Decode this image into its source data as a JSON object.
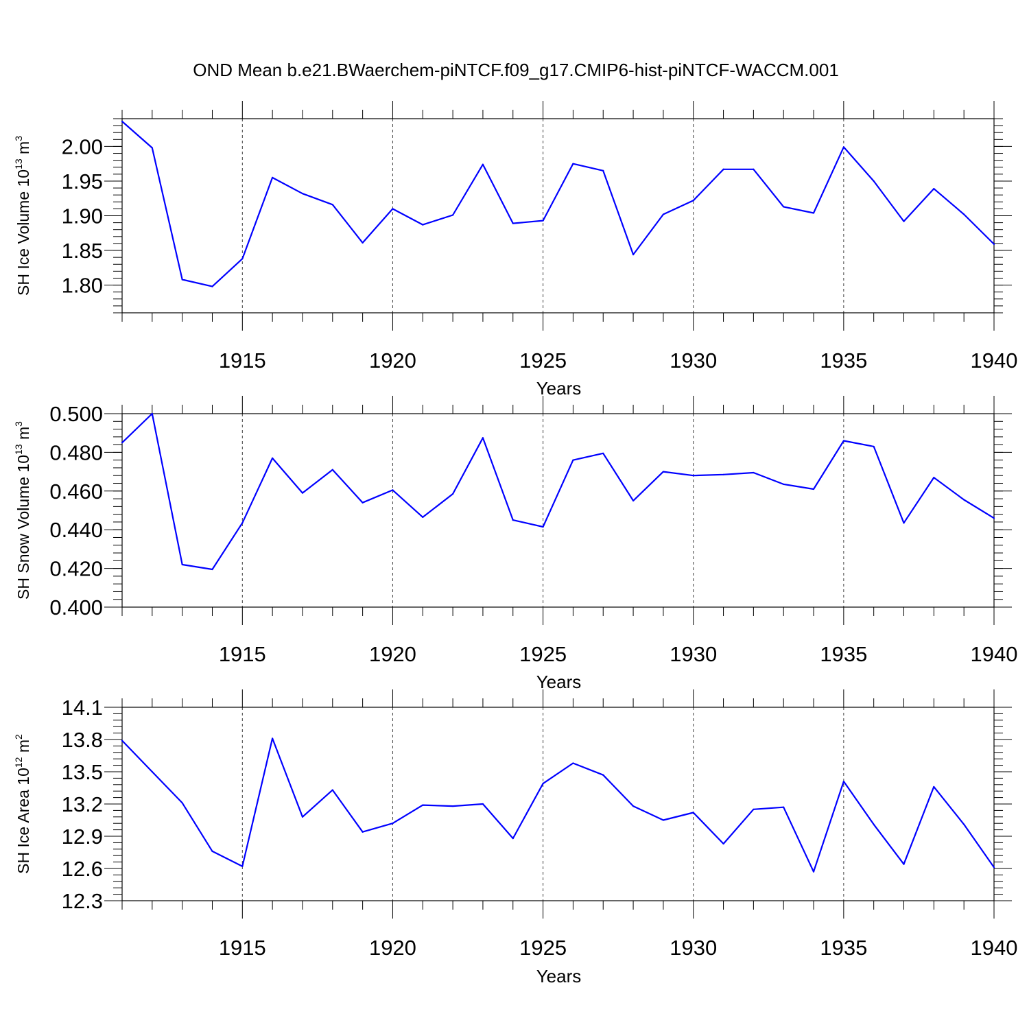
{
  "title": "OND Mean b.e21.BWaerchem-piNTCF.f09_g17.CMIP6-hist-piNTCF-WACCM.001",
  "colors": {
    "line": "#0000ff",
    "axis": "#000000",
    "grid": "#000000",
    "background": "#ffffff"
  },
  "chart_data": [
    {
      "type": "line",
      "ylabel": {
        "main": "SH Ice Volume 10",
        "sup": "13",
        "unit": " m",
        "unit_sup": "3"
      },
      "xlabel": "Years",
      "xlim": [
        1911,
        1940
      ],
      "ylim": [
        1.76,
        2.04
      ],
      "y_ticks": [
        1.8,
        1.85,
        1.9,
        1.95,
        2.0
      ],
      "y_tick_labels": [
        "1.80",
        "1.85",
        "1.90",
        "1.95",
        "2.00"
      ],
      "y_minor_step": 0.01,
      "x_ticks": [
        1915,
        1920,
        1925,
        1930,
        1935,
        1940
      ],
      "x_tick_labels": [
        "1915",
        "1920",
        "1925",
        "1930",
        "1935",
        "1940"
      ],
      "grid_x": [
        1915,
        1920,
        1925,
        1930,
        1935
      ],
      "x": [
        1911,
        1912,
        1913,
        1914,
        1915,
        1916,
        1917,
        1918,
        1919,
        1920,
        1921,
        1922,
        1923,
        1924,
        1925,
        1926,
        1927,
        1928,
        1929,
        1930,
        1931,
        1932,
        1933,
        1934,
        1935,
        1936,
        1937,
        1938,
        1939,
        1940
      ],
      "values": [
        2.036,
        1.998,
        1.808,
        1.798,
        1.838,
        1.955,
        1.932,
        1.916,
        1.861,
        1.91,
        1.887,
        1.901,
        1.974,
        1.889,
        1.893,
        1.975,
        1.965,
        1.844,
        1.902,
        1.922,
        1.967,
        1.967,
        1.913,
        1.904,
        1.999,
        1.95,
        1.892,
        1.939,
        1.902,
        1.859
      ]
    },
    {
      "type": "line",
      "ylabel": {
        "main": "SH Snow Volume 10",
        "sup": "13",
        "unit": " m",
        "unit_sup": "3"
      },
      "xlabel": "Years",
      "xlim": [
        1911,
        1940
      ],
      "ylim": [
        0.4,
        0.5
      ],
      "y_ticks": [
        0.4,
        0.42,
        0.44,
        0.46,
        0.48,
        0.5
      ],
      "y_tick_labels": [
        "0.400",
        "0.420",
        "0.440",
        "0.460",
        "0.480",
        "0.500"
      ],
      "y_minor_step": 0.004,
      "x_ticks": [
        1915,
        1920,
        1925,
        1930,
        1935,
        1940
      ],
      "x_tick_labels": [
        "1915",
        "1920",
        "1925",
        "1930",
        "1935",
        "1940"
      ],
      "grid_x": [
        1915,
        1920,
        1925,
        1930,
        1935
      ],
      "x": [
        1911,
        1912,
        1913,
        1914,
        1915,
        1916,
        1917,
        1918,
        1919,
        1920,
        1921,
        1922,
        1923,
        1924,
        1925,
        1926,
        1927,
        1928,
        1929,
        1930,
        1931,
        1932,
        1933,
        1934,
        1935,
        1936,
        1937,
        1938,
        1939,
        1940
      ],
      "values": [
        0.485,
        0.5,
        0.422,
        0.4195,
        0.4435,
        0.477,
        0.459,
        0.471,
        0.454,
        0.4605,
        0.4465,
        0.4585,
        0.4875,
        0.445,
        0.4415,
        0.476,
        0.4795,
        0.455,
        0.47,
        0.468,
        0.4685,
        0.4695,
        0.4635,
        0.461,
        0.486,
        0.483,
        0.4435,
        0.467,
        0.4555,
        0.446
      ]
    },
    {
      "type": "line",
      "ylabel": {
        "main": "SH Ice Area 10",
        "sup": "12",
        "unit": " m",
        "unit_sup": "2"
      },
      "xlabel": "Years",
      "xlim": [
        1911,
        1940
      ],
      "ylim": [
        12.3,
        14.1
      ],
      "y_ticks": [
        12.3,
        12.6,
        12.9,
        13.2,
        13.5,
        13.8,
        14.1
      ],
      "y_tick_labels": [
        "12.3",
        "12.6",
        "12.9",
        "13.2",
        "13.5",
        "13.8",
        "14.1"
      ],
      "y_minor_step": 0.06,
      "x_ticks": [
        1915,
        1920,
        1925,
        1930,
        1935,
        1940
      ],
      "x_tick_labels": [
        "1915",
        "1920",
        "1925",
        "1930",
        "1935",
        "1940"
      ],
      "grid_x": [
        1915,
        1920,
        1925,
        1930,
        1935
      ],
      "x": [
        1911,
        1912,
        1913,
        1914,
        1915,
        1916,
        1917,
        1918,
        1919,
        1920,
        1921,
        1922,
        1923,
        1924,
        1925,
        1926,
        1927,
        1928,
        1929,
        1930,
        1931,
        1932,
        1933,
        1934,
        1935,
        1936,
        1937,
        1938,
        1939,
        1940
      ],
      "values": [
        13.79,
        13.5,
        13.21,
        12.76,
        12.62,
        13.81,
        13.08,
        13.33,
        12.94,
        13.02,
        13.19,
        13.18,
        13.2,
        12.88,
        13.39,
        13.58,
        13.47,
        13.18,
        13.05,
        13.12,
        12.83,
        13.15,
        13.17,
        12.57,
        13.41,
        13.01,
        12.64,
        13.36,
        13.01,
        12.61
      ]
    }
  ]
}
